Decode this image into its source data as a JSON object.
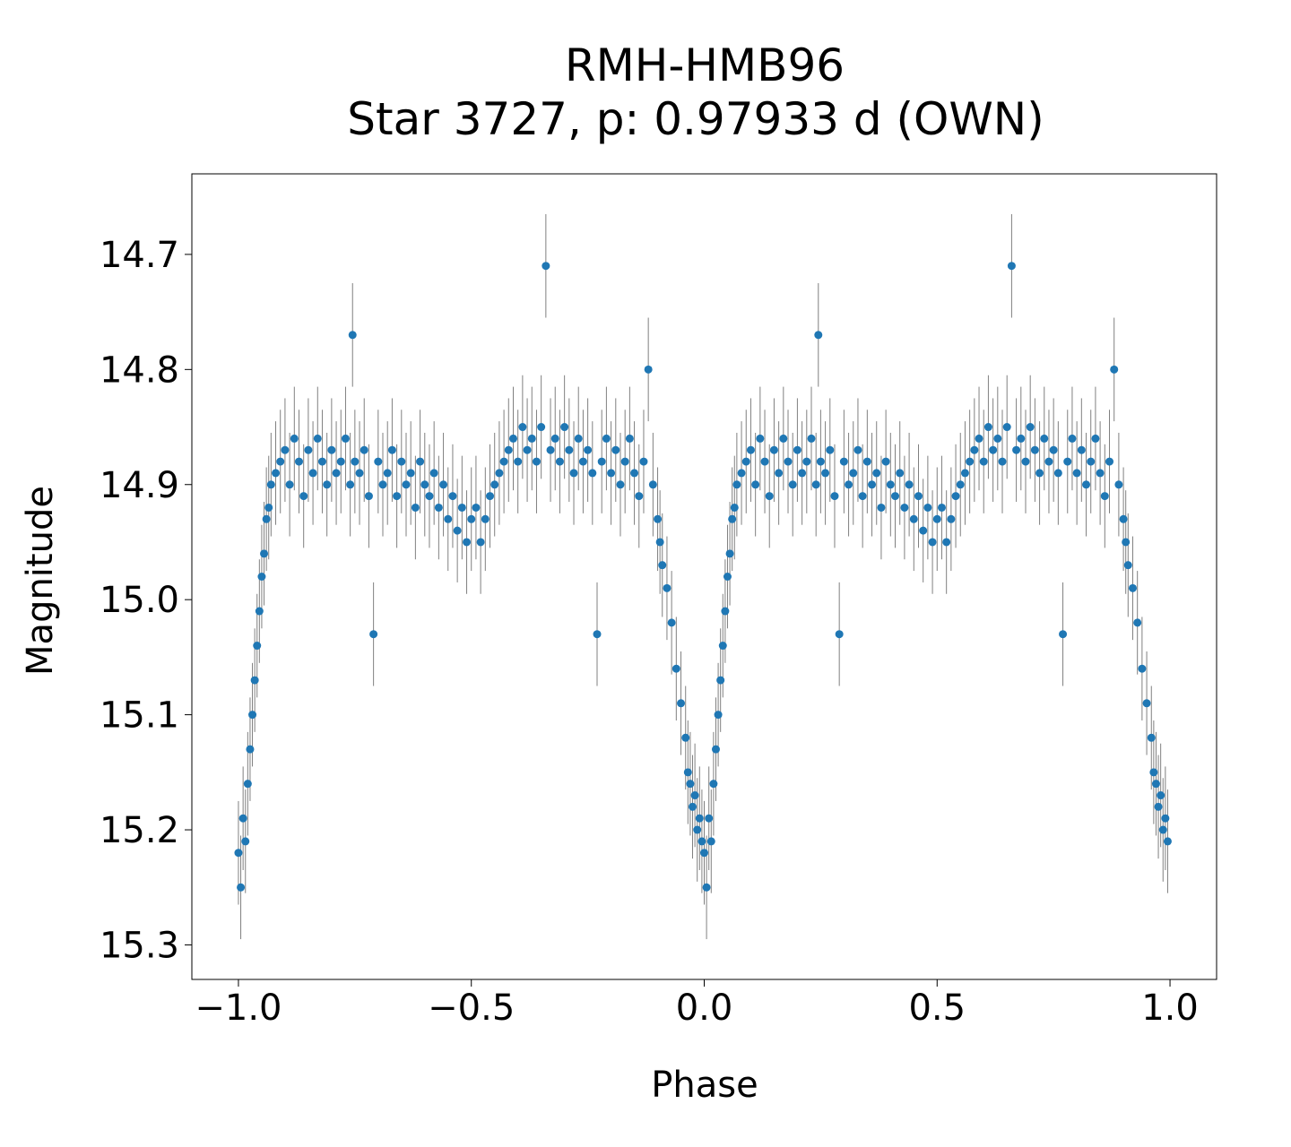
{
  "chart_data": {
    "type": "scatter",
    "title": [
      "RMH-HMB96",
      "Star 3727, p: 0.97933 d (OWN)"
    ],
    "xlabel": "Phase",
    "ylabel": "Magnitude",
    "xlim": [
      -1.1,
      1.1
    ],
    "ylim": [
      15.33,
      14.63
    ],
    "y_inverted": true,
    "xticks": [
      -1.0,
      -0.5,
      0.0,
      0.5,
      1.0
    ],
    "xtick_labels": [
      "−1.0",
      "−0.5",
      "0.0",
      "0.5",
      "1.0"
    ],
    "yticks": [
      14.7,
      14.8,
      14.9,
      15.0,
      15.1,
      15.2,
      15.3
    ],
    "ytick_labels": [
      "14.7",
      "14.8",
      "14.9",
      "15.0",
      "15.1",
      "15.2",
      "15.3"
    ],
    "grid": false,
    "legend": "none",
    "marker_color": "#1f77b4",
    "errorbar_color": "#808080",
    "series": [
      {
        "mirrored": true,
        "typical_error": 0.045,
        "points": [
          [
            0.0,
            15.22
          ],
          [
            0.005,
            15.25
          ],
          [
            0.01,
            15.19
          ],
          [
            0.015,
            15.21
          ],
          [
            0.02,
            15.16
          ],
          [
            0.025,
            15.13
          ],
          [
            0.03,
            15.1
          ],
          [
            0.035,
            15.07
          ],
          [
            0.04,
            15.04
          ],
          [
            0.045,
            15.01
          ],
          [
            0.05,
            14.98
          ],
          [
            0.055,
            14.96
          ],
          [
            0.06,
            14.93
          ],
          [
            0.065,
            14.92
          ],
          [
            0.07,
            14.9
          ],
          [
            0.08,
            14.89
          ],
          [
            0.09,
            14.88
          ],
          [
            0.1,
            14.87
          ],
          [
            0.11,
            14.9
          ],
          [
            0.12,
            14.86
          ],
          [
            0.13,
            14.88
          ],
          [
            0.14,
            14.91
          ],
          [
            0.15,
            14.87
          ],
          [
            0.16,
            14.89
          ],
          [
            0.17,
            14.86
          ],
          [
            0.18,
            14.88
          ],
          [
            0.19,
            14.9
          ],
          [
            0.2,
            14.87
          ],
          [
            0.21,
            14.89
          ],
          [
            0.22,
            14.88
          ],
          [
            0.23,
            14.86
          ],
          [
            0.24,
            14.9
          ],
          [
            0.245,
            14.77
          ],
          [
            0.25,
            14.88
          ],
          [
            0.26,
            14.89
          ],
          [
            0.27,
            14.87
          ],
          [
            0.28,
            14.91
          ],
          [
            0.29,
            15.03
          ],
          [
            0.3,
            14.88
          ],
          [
            0.31,
            14.9
          ],
          [
            0.32,
            14.89
          ],
          [
            0.33,
            14.87
          ],
          [
            0.34,
            14.91
          ],
          [
            0.35,
            14.88
          ],
          [
            0.36,
            14.9
          ],
          [
            0.37,
            14.89
          ],
          [
            0.38,
            14.92
          ],
          [
            0.39,
            14.88
          ],
          [
            0.4,
            14.9
          ],
          [
            0.41,
            14.91
          ],
          [
            0.42,
            14.89
          ],
          [
            0.43,
            14.92
          ],
          [
            0.44,
            14.9
          ],
          [
            0.45,
            14.93
          ],
          [
            0.46,
            14.91
          ],
          [
            0.47,
            14.94
          ],
          [
            0.48,
            14.92
          ],
          [
            0.49,
            14.95
          ],
          [
            0.5,
            14.93
          ],
          [
            0.51,
            14.92
          ],
          [
            0.52,
            14.95
          ],
          [
            0.53,
            14.93
          ],
          [
            0.54,
            14.91
          ],
          [
            0.55,
            14.9
          ],
          [
            0.56,
            14.89
          ],
          [
            0.57,
            14.88
          ],
          [
            0.58,
            14.87
          ],
          [
            0.59,
            14.86
          ],
          [
            0.6,
            14.88
          ],
          [
            0.61,
            14.85
          ],
          [
            0.62,
            14.87
          ],
          [
            0.63,
            14.86
          ],
          [
            0.64,
            14.88
          ],
          [
            0.65,
            14.85
          ],
          [
            0.66,
            14.71
          ],
          [
            0.67,
            14.87
          ],
          [
            0.68,
            14.86
          ],
          [
            0.69,
            14.88
          ],
          [
            0.7,
            14.85
          ],
          [
            0.71,
            14.87
          ],
          [
            0.72,
            14.89
          ],
          [
            0.73,
            14.86
          ],
          [
            0.74,
            14.88
          ],
          [
            0.75,
            14.87
          ],
          [
            0.76,
            14.89
          ],
          [
            0.77,
            15.03
          ],
          [
            0.78,
            14.88
          ],
          [
            0.79,
            14.86
          ],
          [
            0.8,
            14.89
          ],
          [
            0.81,
            14.87
          ],
          [
            0.82,
            14.9
          ],
          [
            0.83,
            14.88
          ],
          [
            0.84,
            14.86
          ],
          [
            0.85,
            14.89
          ],
          [
            0.86,
            14.91
          ],
          [
            0.87,
            14.88
          ],
          [
            0.88,
            14.8
          ],
          [
            0.89,
            14.9
          ],
          [
            0.9,
            14.93
          ],
          [
            0.905,
            14.95
          ],
          [
            0.91,
            14.97
          ],
          [
            0.92,
            14.99
          ],
          [
            0.93,
            15.02
          ],
          [
            0.94,
            15.06
          ],
          [
            0.95,
            15.09
          ],
          [
            0.96,
            15.12
          ],
          [
            0.965,
            15.15
          ],
          [
            0.97,
            15.16
          ],
          [
            0.975,
            15.18
          ],
          [
            0.98,
            15.17
          ],
          [
            0.985,
            15.2
          ],
          [
            0.99,
            15.19
          ],
          [
            0.995,
            15.21
          ]
        ]
      }
    ]
  }
}
